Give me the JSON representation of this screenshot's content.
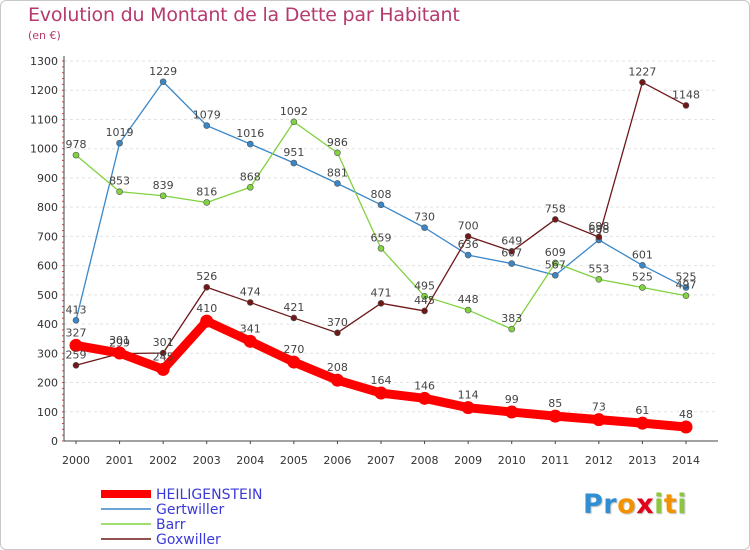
{
  "title": "Evolution du Montant de la Dette par Habitant",
  "subtitle": "(en €)",
  "logo": {
    "letters": [
      "P",
      "r",
      "o",
      "x",
      "i",
      "t",
      "i"
    ],
    "colors": [
      "#2f8fd2",
      "#2f8fd2",
      "#f39200",
      "#e2001a",
      "#8cc63f",
      "#f39200",
      "#8cc63f"
    ]
  },
  "chart_data": {
    "type": "line",
    "title": "Evolution du Montant de la Dette par Habitant",
    "ylabel": "(en €)",
    "xlabel": "",
    "x": [
      "2000",
      "2001",
      "2002",
      "2003",
      "2004",
      "2005",
      "2006",
      "2007",
      "2008",
      "2009",
      "2010",
      "2011",
      "2012",
      "2013",
      "2014"
    ],
    "ylim": [
      0,
      1300
    ],
    "yticks": [
      0,
      100,
      200,
      300,
      400,
      500,
      600,
      700,
      800,
      900,
      1000,
      1100,
      1200,
      1300
    ],
    "grid": "horizontal",
    "legend_position": "bottom-left",
    "series": [
      {
        "name": "HEILIGENSTEIN",
        "color": "#ff0000",
        "values": [
          327,
          301,
          245,
          410,
          341,
          270,
          208,
          164,
          146,
          114,
          99,
          85,
          73,
          61,
          48
        ]
      },
      {
        "name": "Gertwiller",
        "color": "#3a87c8",
        "values": [
          413,
          1019,
          1229,
          1079,
          1016,
          951,
          881,
          808,
          730,
          636,
          607,
          567,
          688,
          601,
          525
        ]
      },
      {
        "name": "Barr",
        "color": "#80d240",
        "values": [
          978,
          853,
          839,
          816,
          868,
          1092,
          986,
          659,
          495,
          448,
          383,
          609,
          553,
          525,
          497
        ]
      },
      {
        "name": "Goxwiller",
        "color": "#6e1818",
        "values": [
          259,
          299,
          301,
          526,
          474,
          421,
          370,
          471,
          445,
          700,
          649,
          758,
          698,
          1227,
          1148
        ]
      }
    ]
  }
}
